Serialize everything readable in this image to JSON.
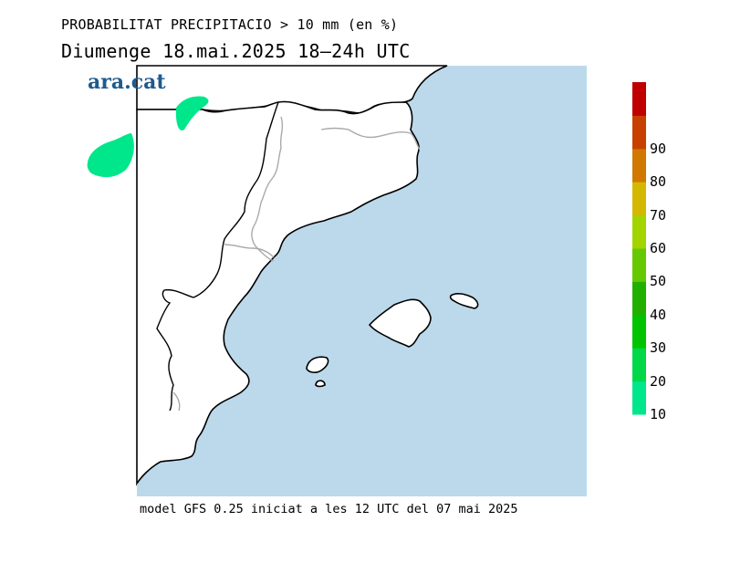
{
  "header": {
    "title_line1": "PROBABILITAT PRECIPITACIO > 10 mm (en %)",
    "title_line2": "Diumenge  18.mai.2025 18–24h UTC"
  },
  "logo": {
    "text": "ara.cat",
    "color": "#1f5a8c"
  },
  "footer": {
    "text": "model GFS 0.25 iniciat a les 12 UTC del 07 mai 2025"
  },
  "map": {
    "sea_color": "#bcd9eb",
    "land_color": "#ffffff",
    "coast_color": "#000000",
    "border_color": "#aaaaaa",
    "precip_areas": [
      {
        "name": "precip-area-pyrenees",
        "probability_band": "10-20",
        "color": "#00e68a"
      },
      {
        "name": "precip-area-west",
        "probability_band": "10-20",
        "color": "#00e68a"
      }
    ]
  },
  "colorbar": {
    "levels": [
      {
        "label": "10",
        "color": "#00e68a"
      },
      {
        "label": "20",
        "color": "#00d84a"
      },
      {
        "label": "30",
        "color": "#00c400"
      },
      {
        "label": "40",
        "color": "#22b000"
      },
      {
        "label": "50",
        "color": "#66c800"
      },
      {
        "label": "60",
        "color": "#a2d400"
      },
      {
        "label": "70",
        "color": "#d4b800"
      },
      {
        "label": "80",
        "color": "#d07800"
      },
      {
        "label": "90",
        "color": "#c84000"
      },
      {
        "label": "",
        "color": "#c00000"
      }
    ]
  }
}
